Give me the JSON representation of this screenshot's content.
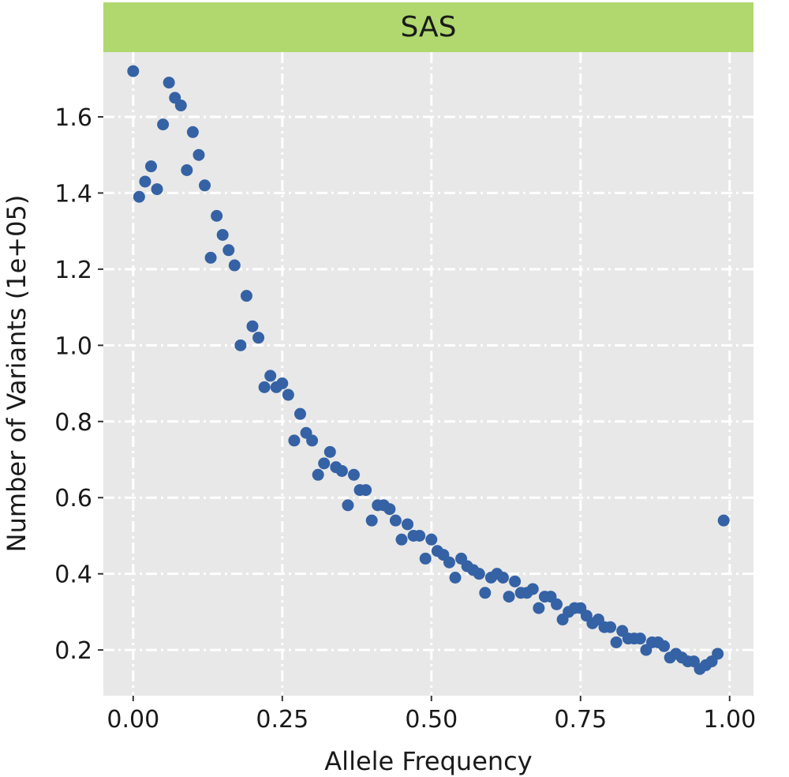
{
  "chart_data": {
    "type": "scatter",
    "facet": "SAS",
    "xlabel": "Allele Frequency",
    "ylabel": "Number of Variants (1e+05)",
    "xlim": [
      -0.05,
      1.04
    ],
    "ylim": [
      0.08,
      1.77
    ],
    "xticks": [
      0.0,
      0.25,
      0.5,
      0.75,
      1.0
    ],
    "xtick_labels": [
      "0.00",
      "0.25",
      "0.50",
      "0.75",
      "1.00"
    ],
    "yticks": [
      0.2,
      0.4,
      0.6,
      0.8,
      1.0,
      1.2,
      1.4,
      1.6
    ],
    "ytick_labels": [
      "0.2",
      "0.4",
      "0.6",
      "0.8",
      "1.0",
      "1.2",
      "1.4",
      "1.6"
    ],
    "grid": true,
    "colors": {
      "facet_strip": "#b0d86e",
      "panel": "#e8e8e8",
      "grid": "#ffffff",
      "point": "#3562a5"
    },
    "x": [
      0.0,
      0.01,
      0.02,
      0.03,
      0.04,
      0.05,
      0.06,
      0.07,
      0.08,
      0.09,
      0.1,
      0.11,
      0.12,
      0.13,
      0.14,
      0.15,
      0.16,
      0.17,
      0.18,
      0.19,
      0.2,
      0.21,
      0.22,
      0.23,
      0.24,
      0.25,
      0.26,
      0.27,
      0.28,
      0.29,
      0.3,
      0.31,
      0.32,
      0.33,
      0.34,
      0.35,
      0.36,
      0.37,
      0.38,
      0.39,
      0.4,
      0.41,
      0.42,
      0.43,
      0.44,
      0.45,
      0.46,
      0.47,
      0.48,
      0.49,
      0.5,
      0.51,
      0.52,
      0.53,
      0.54,
      0.55,
      0.56,
      0.57,
      0.58,
      0.59,
      0.6,
      0.61,
      0.62,
      0.63,
      0.64,
      0.65,
      0.66,
      0.67,
      0.68,
      0.69,
      0.7,
      0.71,
      0.72,
      0.73,
      0.74,
      0.75,
      0.76,
      0.77,
      0.78,
      0.79,
      0.8,
      0.81,
      0.82,
      0.83,
      0.84,
      0.85,
      0.86,
      0.87,
      0.88,
      0.89,
      0.9,
      0.91,
      0.92,
      0.93,
      0.94,
      0.95,
      0.96,
      0.97,
      0.98,
      0.99
    ],
    "y": [
      1.72,
      1.39,
      1.43,
      1.47,
      1.41,
      1.58,
      1.69,
      1.65,
      1.63,
      1.46,
      1.56,
      1.5,
      1.42,
      1.23,
      1.34,
      1.29,
      1.25,
      1.21,
      1.0,
      1.13,
      1.05,
      1.02,
      0.89,
      0.92,
      0.89,
      0.9,
      0.87,
      0.75,
      0.82,
      0.77,
      0.75,
      0.66,
      0.69,
      0.72,
      0.68,
      0.67,
      0.58,
      0.66,
      0.62,
      0.62,
      0.54,
      0.58,
      0.58,
      0.57,
      0.54,
      0.49,
      0.53,
      0.5,
      0.5,
      0.44,
      0.49,
      0.46,
      0.45,
      0.43,
      0.39,
      0.44,
      0.42,
      0.41,
      0.4,
      0.35,
      0.39,
      0.4,
      0.39,
      0.34,
      0.38,
      0.35,
      0.35,
      0.36,
      0.31,
      0.34,
      0.34,
      0.32,
      0.28,
      0.3,
      0.31,
      0.31,
      0.29,
      0.27,
      0.28,
      0.26,
      0.26,
      0.22,
      0.25,
      0.23,
      0.23,
      0.23,
      0.2,
      0.22,
      0.22,
      0.21,
      0.18,
      0.19,
      0.18,
      0.17,
      0.17,
      0.15,
      0.16,
      0.17,
      0.19,
      0.54
    ]
  }
}
